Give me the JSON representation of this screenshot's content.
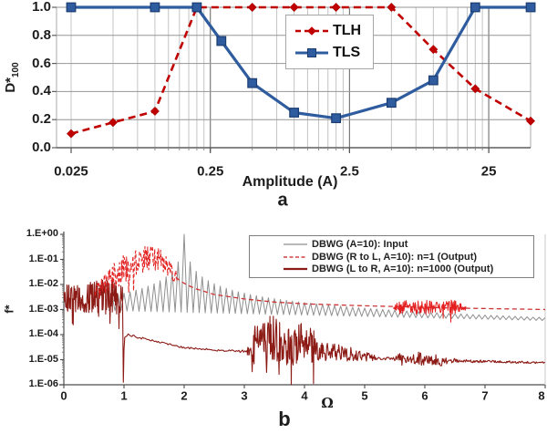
{
  "figure": {
    "background": "#FFFFFF"
  },
  "chart_data": [
    {
      "id": "a",
      "type": "line",
      "panel_label": "a",
      "xlabel": "Amplitude (A)",
      "ylabel_base": "D*",
      "ylabel_sub": "100",
      "x_scale": "log",
      "x_range": [
        0.02,
        50
      ],
      "y_range": [
        0,
        1
      ],
      "x_major_ticks": [
        {
          "v": 0.025,
          "label": "0.025"
        },
        {
          "v": 0.25,
          "label": "0.25"
        },
        {
          "v": 2.5,
          "label": "2.5"
        },
        {
          "v": 25,
          "label": "25"
        }
      ],
      "x_dark_gridlines": [
        0.25,
        2.5,
        25
      ],
      "x_minor_gridlines": [
        0.025,
        0.05,
        0.075,
        0.1,
        0.125,
        0.15,
        0.175,
        0.2,
        0.225,
        0.5,
        0.75,
        1.0,
        1.25,
        1.5,
        1.75,
        2.0,
        2.25,
        5,
        7.5,
        10,
        12.5,
        15,
        17.5,
        20,
        22.5
      ],
      "y_ticks": [
        {
          "v": 1.0,
          "label": "1.0"
        },
        {
          "v": 0.8,
          "label": "0.8"
        },
        {
          "v": 0.6,
          "label": "0.6"
        },
        {
          "v": 0.4,
          "label": "0.4"
        },
        {
          "v": 0.2,
          "label": "0.2"
        },
        {
          "v": 0.0,
          "label": "0.0"
        }
      ],
      "series": [
        {
          "name": "TLH",
          "color": "#C00000",
          "line": "dashed",
          "marker": "diamond",
          "points": [
            [
              0.025,
              0.1
            ],
            [
              0.05,
              0.18
            ],
            [
              0.1,
              0.26
            ],
            [
              0.2,
              1.0
            ],
            [
              0.5,
              1.0
            ],
            [
              1,
              1.0
            ],
            [
              2,
              1.0
            ],
            [
              5,
              1.0
            ],
            [
              10,
              0.7
            ],
            [
              20,
              0.42
            ],
            [
              50,
              0.19
            ]
          ]
        },
        {
          "name": "TLS",
          "color": "#2E5C9F",
          "marker_edge": "#1B3C70",
          "line": "solid",
          "marker": "square",
          "points": [
            [
              0.025,
              1.0
            ],
            [
              0.1,
              1.0
            ],
            [
              0.2,
              1.0
            ],
            [
              0.3,
              0.76
            ],
            [
              0.5,
              0.46
            ],
            [
              1,
              0.25
            ],
            [
              2,
              0.21
            ],
            [
              5,
              0.32
            ],
            [
              10,
              0.48
            ],
            [
              20,
              1.0
            ],
            [
              50,
              1.0
            ]
          ]
        }
      ]
    },
    {
      "id": "b",
      "type": "line",
      "panel_label": "b",
      "xlabel": "Ω",
      "ylabel": "f*",
      "x_range": [
        0,
        8
      ],
      "y_scale": "log",
      "y_exponent_range": [
        -6,
        0
      ],
      "x_ticks": [
        {
          "v": 0,
          "label": "0"
        },
        {
          "v": 1,
          "label": "1"
        },
        {
          "v": 2,
          "label": "2"
        },
        {
          "v": 3,
          "label": "3"
        },
        {
          "v": 4,
          "label": "4"
        },
        {
          "v": 5,
          "label": "5"
        },
        {
          "v": 6,
          "label": "6"
        },
        {
          "v": 7,
          "label": "7"
        },
        {
          "v": 8,
          "label": "8"
        }
      ],
      "y_ticks": [
        {
          "e": 0,
          "label": "1.E+00"
        },
        {
          "e": -1,
          "label": "1.E-01"
        },
        {
          "e": -2,
          "label": "1.E-02"
        },
        {
          "e": -3,
          "label": "1.E-03"
        },
        {
          "e": -4,
          "label": "1.E-04"
        },
        {
          "e": -5,
          "label": "1.E-05"
        },
        {
          "e": -6,
          "label": "1.E-06"
        }
      ],
      "noise_seed": 20,
      "legend": [
        {
          "label": "DBWG (A=10): Input",
          "color": "#8F8F8F",
          "dash": "",
          "width": 1.2
        },
        {
          "label": "DBWG (R to L, A=10): n=1 (Output)",
          "color": "#D04040",
          "dash": "4 2.5",
          "width": 1.4
        },
        {
          "label": "DBWG (L to R, A=10): n=1000 (Output)",
          "color": "#8C1A15",
          "dash": "",
          "width": 2.2
        }
      ],
      "series": [
        {
          "name": "DBWG (A=10): Input",
          "color": "#8F8F8F",
          "width": 1,
          "parts": [
            {
              "kind": "comb",
              "start": 0.75,
              "end": 8,
              "period": 0.1,
              "peak_center": 2,
              "top_coef": 0.0045,
              "top_exp": 1.25,
              "bottom_start": -3.0,
              "bottom_slope": -0.055
            }
          ]
        },
        {
          "name": "DBWG (L to R, A=10): n=1000 (Output)",
          "color": "#8C1A15",
          "width": 1.1,
          "parts": [
            {
              "kind": "noise",
              "start": 0.0,
              "end": 0.975,
              "step": 0.0065,
              "center": [
                [
                  0,
                  -2.6
                ],
                [
                  0.2,
                  -2.55
                ],
                [
                  0.5,
                  -2.5
                ],
                [
                  0.8,
                  -2.45
                ],
                [
                  0.975,
                  -2.55
                ]
              ],
              "amp": [
                [
                  0,
                  0.6
                ],
                [
                  0.5,
                  0.65
                ],
                [
                  0.9,
                  0.7
                ],
                [
                  0.975,
                  0.55
                ]
              ],
              "spike_prob": 0.06,
              "spike_extra": 0.8
            },
            {
              "kind": "poly",
              "points": [
                [
                  0.978,
                  -2.9
                ],
                [
                  0.99,
                  -5.9
                ],
                [
                  1.0,
                  -4.6
                ],
                [
                  1.01,
                  -4.2
                ]
              ]
            },
            {
              "kind": "noise",
              "start": 1.01,
              "end": 3.05,
              "step": 0.02,
              "center": [
                [
                  1.01,
                  -4.15
                ],
                [
                  1.07,
                  -4.0
                ],
                [
                  1.3,
                  -4.15
                ],
                [
                  1.6,
                  -4.3
                ],
                [
                  2.0,
                  -4.52
                ],
                [
                  2.6,
                  -4.63
                ],
                [
                  3.05,
                  -4.68
                ]
              ],
              "amp": [
                [
                  1.01,
                  0.06
                ],
                [
                  1.5,
                  0.03
                ],
                [
                  2.8,
                  0.04
                ],
                [
                  3.05,
                  0.08
                ]
              ],
              "spike_prob": 0,
              "spike_extra": 0
            },
            {
              "kind": "noise",
              "start": 3.05,
              "end": 4.3,
              "step": 0.008,
              "center": [
                [
                  3.05,
                  -4.6
                ],
                [
                  3.3,
                  -4.25
                ],
                [
                  3.5,
                  -4.15
                ],
                [
                  3.75,
                  -4.35
                ],
                [
                  4.0,
                  -4.35
                ],
                [
                  4.3,
                  -4.6
                ]
              ],
              "amp": [
                [
                  3.05,
                  0.35
                ],
                [
                  3.2,
                  0.85
                ],
                [
                  3.5,
                  0.95
                ],
                [
                  3.9,
                  0.85
                ],
                [
                  4.15,
                  0.65
                ],
                [
                  4.3,
                  0.4
                ]
              ],
              "spike_prob": 0.04,
              "spike_extra": 0.9,
              "force": [
                [
                  3.78,
                  -6.0
                ],
                [
                  4.15,
                  -5.95
                ]
              ]
            },
            {
              "kind": "noise",
              "start": 4.3,
              "end": 5.2,
              "step": 0.01,
              "center": [
                [
                  4.3,
                  -4.6
                ],
                [
                  4.8,
                  -4.8
                ],
                [
                  5.2,
                  -4.93
                ]
              ],
              "amp": [
                [
                  4.3,
                  0.45
                ],
                [
                  4.7,
                  0.3
                ],
                [
                  5.2,
                  0.12
                ]
              ],
              "spike_prob": 0.02,
              "spike_extra": 0.5
            },
            {
              "kind": "noise",
              "start": 5.2,
              "end": 8,
              "step": 0.012,
              "center": [
                [
                  5.2,
                  -4.95
                ],
                [
                  6.0,
                  -5.0
                ],
                [
                  7.0,
                  -5.07
                ],
                [
                  8.0,
                  -5.12
                ]
              ],
              "amp": [
                [
                  5.2,
                  0.05
                ],
                [
                  5.5,
                  0.07
                ],
                [
                  5.6,
                  0.3
                ],
                [
                  5.72,
                  0.12
                ],
                [
                  5.88,
                  0.32
                ],
                [
                  6.05,
                  0.15
                ],
                [
                  6.22,
                  0.3
                ],
                [
                  6.4,
                  0.12
                ],
                [
                  6.6,
                  0.06
                ],
                [
                  8,
                  0.035
                ]
              ],
              "spike_prob": 0,
              "spike_extra": 0
            }
          ]
        },
        {
          "name": "DBWG (R to L, A=10): n=1 (Output)",
          "color": "#E32222",
          "width": 1.1,
          "dash": "4 2.5",
          "parts": [
            {
              "kind": "noise",
              "start": 0.52,
              "end": 1.88,
              "step": 0.009,
              "center": [
                [
                  0.52,
                  -2.35
                ],
                [
                  0.7,
                  -1.95
                ],
                [
                  0.9,
                  -1.55
                ],
                [
                  1.1,
                  -1.2
                ],
                [
                  1.3,
                  -1.0
                ],
                [
                  1.5,
                  -0.95
                ],
                [
                  1.65,
                  -1.1
                ],
                [
                  1.8,
                  -1.5
                ],
                [
                  1.88,
                  -1.75
                ]
              ],
              "amp": [
                [
                  0.52,
                  0.3
                ],
                [
                  0.8,
                  0.55
                ],
                [
                  1.2,
                  0.55
                ],
                [
                  1.5,
                  0.5
                ],
                [
                  1.88,
                  0.3
                ]
              ],
              "spike_prob": 0.05,
              "spike_extra": 0.6
            }
          ]
        },
        {
          "name": "n1 smooth decay",
          "in_legend": false,
          "color": "#CC3333",
          "width": 1.3,
          "dash": "5 3.5",
          "parts": [
            {
              "kind": "poly",
              "points": [
                [
                  1.86,
                  -1.72
                ],
                [
                  1.95,
                  -1.88
                ],
                [
                  2.05,
                  -2.02
                ],
                [
                  2.2,
                  -2.18
                ],
                [
                  2.5,
                  -2.4
                ],
                [
                  3.0,
                  -2.58
                ],
                [
                  3.5,
                  -2.7
                ],
                [
                  4.0,
                  -2.77
                ],
                [
                  4.5,
                  -2.81
                ],
                [
                  5.0,
                  -2.85
                ],
                [
                  5.5,
                  -2.88
                ],
                [
                  6.0,
                  -2.91
                ],
                [
                  6.5,
                  -2.94
                ],
                [
                  7.0,
                  -2.96
                ],
                [
                  7.5,
                  -2.98
                ],
                [
                  8.0,
                  -3.0
                ]
              ]
            }
          ]
        },
        {
          "name": "n1 high-frequency cluster",
          "in_legend": false,
          "color": "#E41E1E",
          "width": 1,
          "parts": [
            {
              "kind": "noise",
              "start": 5.48,
              "end": 6.68,
              "step": 0.008,
              "center": [
                [
                  5.48,
                  -2.92
                ],
                [
                  5.7,
                  -2.88
                ],
                [
                  6.0,
                  -2.9
                ],
                [
                  6.3,
                  -2.88
                ],
                [
                  6.68,
                  -2.92
                ]
              ],
              "amp": [
                [
                  5.48,
                  0.08
                ],
                [
                  5.6,
                  0.3
                ],
                [
                  5.8,
                  0.22
                ],
                [
                  6.0,
                  0.3
                ],
                [
                  6.2,
                  0.25
                ],
                [
                  6.45,
                  0.3
                ],
                [
                  6.68,
                  0.1
                ]
              ],
              "spike_prob": 0.03,
              "spike_extra": 0.35
            }
          ]
        }
      ]
    }
  ]
}
